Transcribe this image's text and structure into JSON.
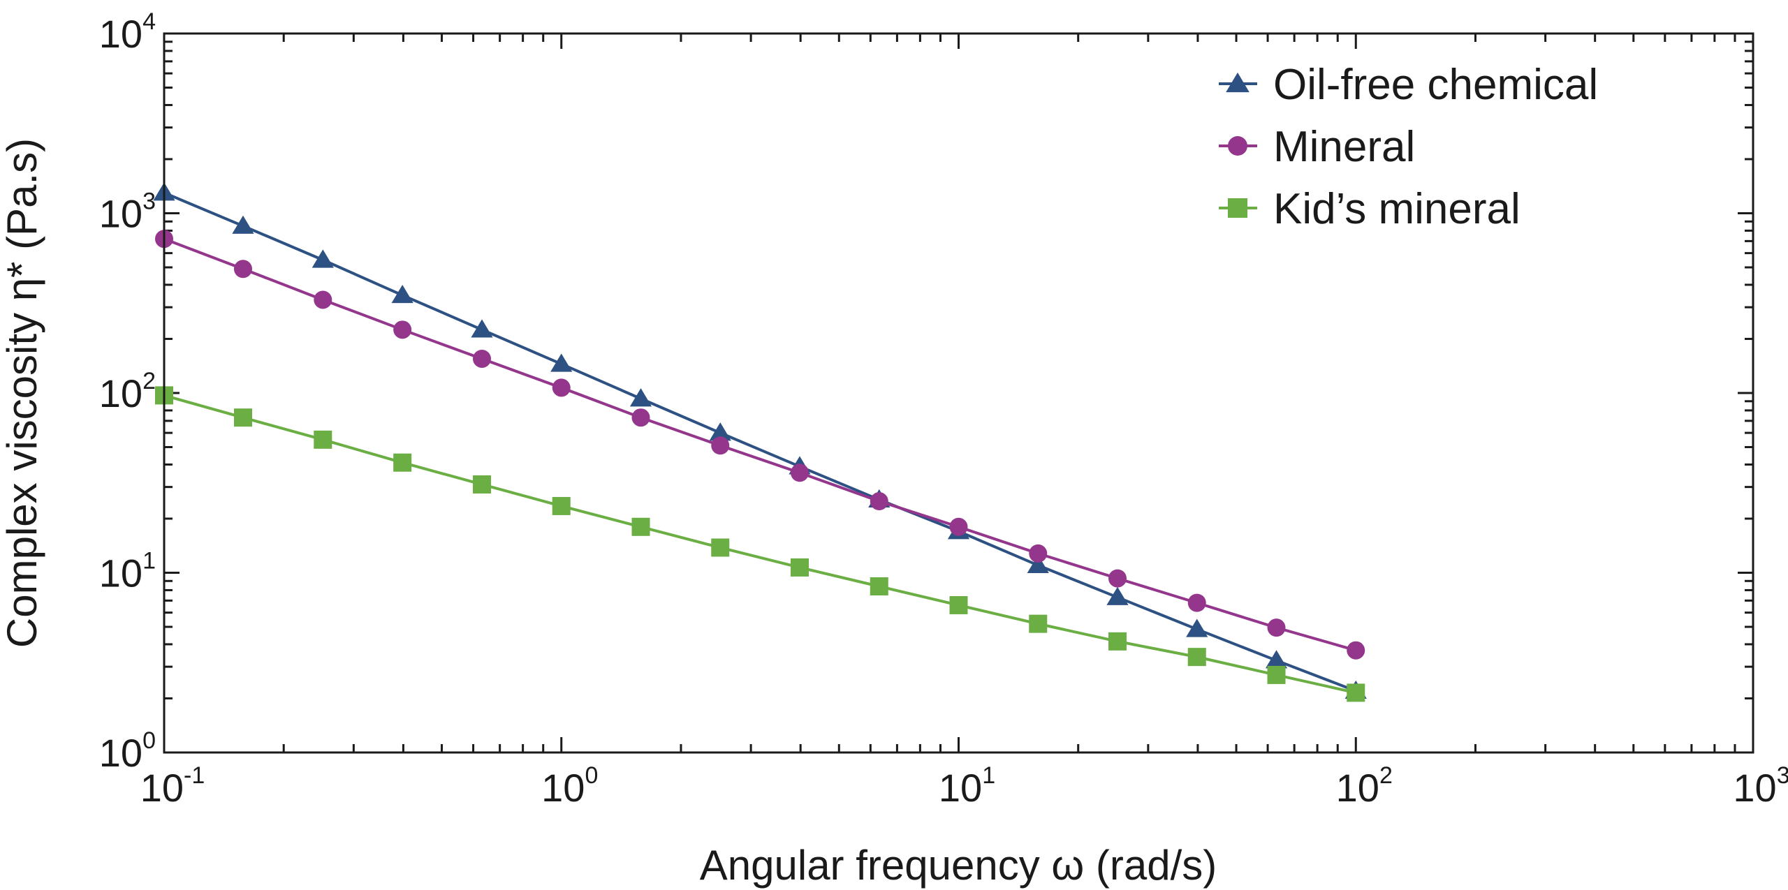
{
  "chart_data": {
    "type": "line",
    "xlabel": "Angular frequency ω (rad/s)",
    "ylabel": "Complex viscosity η* (Pa.s)",
    "xscale": "log",
    "yscale": "log",
    "xlim": [
      0.1,
      1000
    ],
    "ylim": [
      1,
      10000
    ],
    "xticks": [
      {
        "value": 0.1,
        "base": "10",
        "exp": "-1"
      },
      {
        "value": 1,
        "base": "10",
        "exp": "0"
      },
      {
        "value": 10,
        "base": "10",
        "exp": "1"
      },
      {
        "value": 100,
        "base": "10",
        "exp": "2"
      },
      {
        "value": 1000,
        "base": "10",
        "exp": "3"
      }
    ],
    "yticks": [
      {
        "value": 1,
        "base": "10",
        "exp": "0"
      },
      {
        "value": 10,
        "base": "10",
        "exp": "1"
      },
      {
        "value": 100,
        "base": "10",
        "exp": "2"
      },
      {
        "value": 1000,
        "base": "10",
        "exp": "3"
      },
      {
        "value": 10000,
        "base": "10",
        "exp": "4"
      }
    ],
    "legend_position": "top-right",
    "grid": false,
    "x": [
      0.1,
      0.158,
      0.251,
      0.398,
      0.631,
      1.0,
      1.585,
      2.512,
      3.981,
      6.31,
      10.0,
      15.85,
      25.12,
      39.81,
      63.1,
      100.0
    ],
    "series": [
      {
        "name": "Oil-free chemical",
        "marker": "triangle",
        "color": "#2d5183",
        "values": [
          1300,
          850,
          550,
          350,
          225,
          145,
          93,
          60,
          39,
          25.5,
          17,
          11,
          7.3,
          4.85,
          3.25,
          2.2
        ]
      },
      {
        "name": "Mineral",
        "marker": "circle",
        "color": "#93368c",
        "values": [
          720,
          490,
          330,
          225,
          155,
          107,
          73,
          51,
          36,
          25,
          18,
          12.8,
          9.3,
          6.8,
          4.95,
          3.7
        ]
      },
      {
        "name": "Kid’s mineral",
        "marker": "square",
        "color": "#6aae44",
        "values": [
          97,
          73,
          55,
          41,
          31,
          23.5,
          18,
          13.8,
          10.7,
          8.4,
          6.6,
          5.2,
          4.15,
          3.4,
          2.7,
          2.15
        ]
      }
    ]
  }
}
